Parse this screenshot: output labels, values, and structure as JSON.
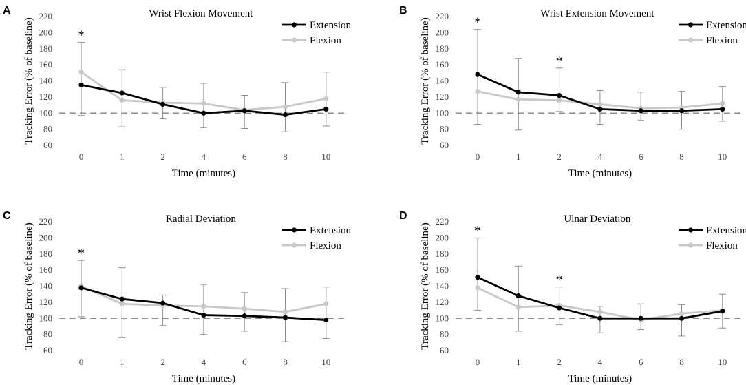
{
  "colors": {
    "extension": "#000000",
    "flexion": "#c8c8c8",
    "error_bar": "#8c8c8c",
    "baseline": "#8c8c8c"
  },
  "chart_data": [
    {
      "panel": "A",
      "type": "line",
      "title": "Wrist Flexion Movement",
      "xlabel": "Time (minutes)",
      "ylabel": "Tracking Error (% of baseline)",
      "categories": [
        "0",
        "1",
        "2",
        "4",
        "6",
        "8",
        "10"
      ],
      "ylim": [
        60,
        220
      ],
      "yticks": [
        60,
        80,
        100,
        120,
        140,
        160,
        180,
        200,
        220
      ],
      "baseline": 100,
      "legend": [
        "Extension",
        "Flexion"
      ],
      "series": [
        {
          "name": "Extension",
          "values": [
            135,
            125,
            111,
            100,
            103,
            98,
            105
          ],
          "err_upper": [
            188,
            154,
            132,
            137,
            122,
            138,
            151
          ],
          "err_lower": [
            97,
            83,
            93,
            82,
            81,
            77,
            84
          ]
        },
        {
          "name": "Flexion",
          "values": [
            151,
            116,
            113,
            112,
            104,
            108,
            118
          ],
          "err_upper": [
            188,
            154,
            132,
            137,
            122,
            138,
            151
          ],
          "err_lower": [
            97,
            83,
            93,
            82,
            81,
            77,
            84
          ]
        }
      ],
      "annotations": [
        {
          "index": 0,
          "text": "*"
        }
      ]
    },
    {
      "panel": "B",
      "type": "line",
      "title": "Wrist Extension Movement",
      "xlabel": "Time (minutes)",
      "ylabel": "Tracking Error (% of baseline)",
      "categories": [
        "0",
        "1",
        "2",
        "4",
        "6",
        "8",
        "10"
      ],
      "ylim": [
        60,
        220
      ],
      "yticks": [
        60,
        80,
        100,
        120,
        140,
        160,
        180,
        200,
        220
      ],
      "baseline": 100,
      "legend": [
        "Extension",
        "Flexion"
      ],
      "series": [
        {
          "name": "Extension",
          "values": [
            148,
            126,
            122,
            105,
            103,
            103,
            105
          ],
          "err_upper": [
            204,
            168,
            156,
            128,
            126,
            127,
            133
          ],
          "err_lower": [
            86,
            79,
            102,
            86,
            91,
            80,
            90
          ]
        },
        {
          "name": "Flexion",
          "values": [
            127,
            117,
            116,
            111,
            106,
            107,
            112
          ],
          "err_upper": [
            204,
            168,
            156,
            128,
            126,
            127,
            133
          ],
          "err_lower": [
            86,
            79,
            102,
            86,
            91,
            80,
            90
          ]
        }
      ],
      "annotations": [
        {
          "index": 0,
          "text": "*"
        },
        {
          "index": 2,
          "text": "*"
        }
      ]
    },
    {
      "panel": "C",
      "type": "line",
      "title": "Radial Deviation",
      "xlabel": "Time (minutes)",
      "ylabel": "Tracking Error (% of baseline)",
      "categories": [
        "0",
        "1",
        "2",
        "4",
        "6",
        "8",
        "10"
      ],
      "ylim": [
        60,
        220
      ],
      "yticks": [
        60,
        80,
        100,
        120,
        140,
        160,
        180,
        200,
        220
      ],
      "baseline": 100,
      "legend": [
        "Extension",
        "Flexion"
      ],
      "series": [
        {
          "name": "Extension",
          "values": [
            138,
            124,
            119,
            104,
            103,
            101,
            98
          ],
          "err_upper": [
            172,
            163,
            129,
            142,
            132,
            137,
            139
          ],
          "err_lower": [
            102,
            76,
            91,
            80,
            84,
            71,
            75
          ]
        },
        {
          "name": "Flexion",
          "values": [
            140,
            118,
            116,
            115,
            112,
            108,
            118
          ],
          "err_upper": [
            172,
            163,
            129,
            142,
            132,
            137,
            139
          ],
          "err_lower": [
            102,
            76,
            91,
            80,
            84,
            71,
            75
          ]
        }
      ],
      "annotations": [
        {
          "index": 0,
          "text": "*"
        }
      ]
    },
    {
      "panel": "D",
      "type": "line",
      "title": "Ulnar Deviation",
      "xlabel": "Time (minutes)",
      "ylabel": "Tracking Error (% of baseline)",
      "categories": [
        "0",
        "1",
        "2",
        "4",
        "6",
        "8",
        "10"
      ],
      "ylim": [
        60,
        220
      ],
      "yticks": [
        60,
        80,
        100,
        120,
        140,
        160,
        180,
        200,
        220
      ],
      "baseline": 100,
      "legend": [
        "Extension",
        "Flexion"
      ],
      "series": [
        {
          "name": "Extension",
          "values": [
            151,
            128,
            113,
            100,
            100,
            100,
            109
          ],
          "err_upper": [
            200,
            165,
            139,
            115,
            118,
            117,
            130
          ],
          "err_lower": [
            110,
            84,
            92,
            82,
            86,
            78,
            88
          ]
        },
        {
          "name": "Flexion",
          "values": [
            138,
            114,
            116,
            108,
            98,
            106,
            110
          ],
          "err_upper": [
            200,
            165,
            139,
            115,
            118,
            117,
            130
          ],
          "err_lower": [
            110,
            84,
            92,
            82,
            86,
            78,
            88
          ]
        }
      ],
      "annotations": [
        {
          "index": 0,
          "text": "*"
        },
        {
          "index": 2,
          "text": "*"
        }
      ]
    }
  ]
}
